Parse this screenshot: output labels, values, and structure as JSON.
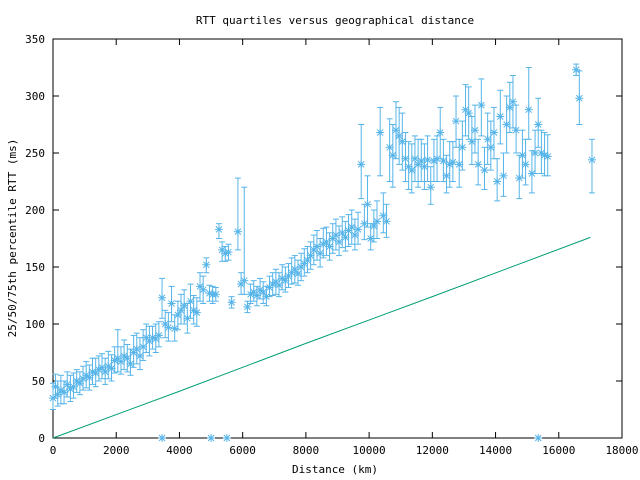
{
  "chart_data": {
    "type": "scatter",
    "title": "RTT quartiles versus geographical distance",
    "xlabel": "Distance (km)",
    "ylabel": "25/50/75th percentile RTT (ms)",
    "xlim": [
      0,
      18000
    ],
    "ylim": [
      0,
      350
    ],
    "x_ticks": [
      0,
      2000,
      4000,
      6000,
      8000,
      10000,
      12000,
      14000,
      16000,
      18000
    ],
    "y_ticks": [
      0,
      50,
      100,
      150,
      200,
      250,
      300,
      350
    ],
    "grid": false,
    "legend": "none",
    "colors": {
      "points": "#56b4e9",
      "line": "#009e73"
    },
    "series": [
      {
        "type": "errorbar",
        "values": [
          [
            0,
            35,
            25,
            48
          ],
          [
            80,
            45,
            35,
            56
          ],
          [
            150,
            38,
            28,
            50
          ],
          [
            250,
            42,
            30,
            55
          ],
          [
            350,
            40,
            30,
            50
          ],
          [
            450,
            47,
            36,
            58
          ],
          [
            550,
            43,
            32,
            55
          ],
          [
            650,
            45,
            35,
            57
          ],
          [
            750,
            50,
            40,
            60
          ],
          [
            850,
            48,
            38,
            58
          ],
          [
            950,
            52,
            42,
            63
          ],
          [
            1050,
            55,
            44,
            67
          ],
          [
            1150,
            53,
            42,
            64
          ],
          [
            1250,
            58,
            47,
            70
          ],
          [
            1350,
            57,
            45,
            70
          ],
          [
            1450,
            60,
            50,
            72
          ],
          [
            1550,
            62,
            52,
            74
          ],
          [
            1650,
            58,
            47,
            70
          ],
          [
            1750,
            63,
            52,
            76
          ],
          [
            1850,
            61,
            50,
            73
          ],
          [
            1950,
            68,
            57,
            80
          ],
          [
            2050,
            70,
            58,
            95
          ],
          [
            2150,
            67,
            56,
            80
          ],
          [
            2250,
            72,
            60,
            86
          ],
          [
            2350,
            70,
            58,
            82
          ],
          [
            2450,
            65,
            55,
            78
          ],
          [
            2550,
            75,
            62,
            90
          ],
          [
            2650,
            78,
            65,
            92
          ],
          [
            2750,
            72,
            60,
            88
          ],
          [
            2850,
            80,
            68,
            95
          ],
          [
            2950,
            88,
            75,
            100
          ],
          [
            3050,
            85,
            72,
            98
          ],
          [
            3150,
            88,
            78,
            98
          ],
          [
            3250,
            87,
            75,
            100
          ],
          [
            3350,
            90,
            80,
            102
          ],
          [
            3450,
            123,
            105,
            140
          ],
          [
            3550,
            100,
            88,
            112
          ],
          [
            3650,
            97,
            85,
            110
          ],
          [
            3750,
            118,
            102,
            133
          ],
          [
            3850,
            96,
            85,
            108
          ],
          [
            3950,
            108,
            95,
            120
          ],
          [
            4050,
            112,
            100,
            126
          ],
          [
            4150,
            116,
            100,
            130
          ],
          [
            4250,
            105,
            92,
            118
          ],
          [
            4350,
            120,
            105,
            135
          ],
          [
            4450,
            112,
            100,
            125
          ],
          [
            4550,
            110,
            98,
            123
          ],
          [
            4650,
            133,
            120,
            145
          ],
          [
            4750,
            130,
            118,
            142
          ],
          [
            4850,
            152,
            145,
            158
          ],
          [
            4950,
            127,
            120,
            134
          ],
          [
            5050,
            126,
            118,
            133
          ],
          [
            5150,
            126,
            120,
            132
          ],
          [
            5250,
            183,
            175,
            188
          ],
          [
            5350,
            165,
            155,
            172
          ],
          [
            5450,
            162,
            155,
            168
          ],
          [
            5550,
            163,
            156,
            170
          ],
          [
            5650,
            119,
            114,
            124
          ],
          [
            5850,
            181,
            165,
            228
          ],
          [
            5950,
            135,
            126,
            145
          ],
          [
            6050,
            138,
            126,
            220
          ],
          [
            6150,
            115,
            110,
            120
          ],
          [
            6250,
            126,
            118,
            135
          ],
          [
            6350,
            128,
            120,
            138
          ],
          [
            6450,
            125,
            116,
            133
          ],
          [
            6550,
            130,
            122,
            140
          ],
          [
            6650,
            128,
            118,
            137
          ],
          [
            6750,
            124,
            116,
            133
          ],
          [
            6850,
            132,
            124,
            142
          ],
          [
            6950,
            135,
            125,
            145
          ],
          [
            7050,
            137,
            126,
            148
          ],
          [
            7150,
            134,
            124,
            145
          ],
          [
            7250,
            140,
            130,
            152
          ],
          [
            7350,
            138,
            128,
            150
          ],
          [
            7450,
            142,
            132,
            153
          ],
          [
            7550,
            145,
            135,
            158
          ],
          [
            7650,
            148,
            136,
            160
          ],
          [
            7750,
            144,
            134,
            156
          ],
          [
            7850,
            150,
            138,
            162
          ],
          [
            7950,
            153,
            142,
            166
          ],
          [
            8050,
            156,
            145,
            168
          ],
          [
            8150,
            160,
            148,
            172
          ],
          [
            8250,
            165,
            152,
            178
          ],
          [
            8350,
            168,
            156,
            182
          ],
          [
            8450,
            162,
            150,
            175
          ],
          [
            8550,
            170,
            158,
            184
          ],
          [
            8650,
            172,
            160,
            185
          ],
          [
            8750,
            168,
            156,
            180
          ],
          [
            8850,
            175,
            162,
            188
          ],
          [
            8950,
            178,
            165,
            192
          ],
          [
            9050,
            172,
            160,
            186
          ],
          [
            9150,
            180,
            167,
            194
          ],
          [
            9250,
            176,
            164,
            190
          ],
          [
            9350,
            182,
            168,
            196
          ],
          [
            9450,
            185,
            170,
            200
          ],
          [
            9550,
            178,
            165,
            192
          ],
          [
            9650,
            183,
            170,
            198
          ],
          [
            9750,
            240,
            210,
            275
          ],
          [
            9850,
            188,
            174,
            205
          ],
          [
            9950,
            205,
            185,
            230
          ],
          [
            10050,
            175,
            165,
            188
          ],
          [
            10150,
            186,
            172,
            200
          ],
          [
            10250,
            190,
            175,
            208
          ],
          [
            10350,
            268,
            230,
            290
          ],
          [
            10450,
            195,
            180,
            215
          ],
          [
            10550,
            190,
            176,
            205
          ],
          [
            10650,
            255,
            225,
            280
          ],
          [
            10750,
            248,
            220,
            275
          ],
          [
            10850,
            270,
            245,
            295
          ],
          [
            10950,
            265,
            240,
            290
          ],
          [
            11050,
            260,
            235,
            285
          ],
          [
            11150,
            245,
            225,
            268
          ],
          [
            11250,
            238,
            218,
            260
          ],
          [
            11350,
            235,
            215,
            258
          ],
          [
            11450,
            245,
            225,
            265
          ],
          [
            11550,
            240,
            220,
            262
          ],
          [
            11650,
            243,
            225,
            262
          ],
          [
            11750,
            238,
            218,
            258
          ],
          [
            11850,
            244,
            225,
            265
          ],
          [
            11950,
            220,
            205,
            238
          ],
          [
            12050,
            243,
            225,
            262
          ],
          [
            12150,
            245,
            225,
            265
          ],
          [
            12250,
            268,
            245,
            290
          ],
          [
            12350,
            243,
            225,
            262
          ],
          [
            12450,
            230,
            215,
            248
          ],
          [
            12550,
            240,
            220,
            260
          ],
          [
            12650,
            242,
            225,
            260
          ],
          [
            12750,
            278,
            255,
            300
          ],
          [
            12850,
            240,
            220,
            262
          ],
          [
            12950,
            255,
            235,
            278
          ],
          [
            13050,
            288,
            265,
            310
          ],
          [
            13150,
            285,
            262,
            308
          ],
          [
            13250,
            260,
            240,
            282
          ],
          [
            13350,
            270,
            250,
            292
          ],
          [
            13450,
            240,
            222,
            262
          ],
          [
            13550,
            292,
            265,
            315
          ],
          [
            13650,
            235,
            218,
            255
          ],
          [
            13750,
            262,
            240,
            285
          ],
          [
            13850,
            255,
            235,
            278
          ],
          [
            13950,
            268,
            245,
            290
          ],
          [
            14050,
            225,
            208,
            245
          ],
          [
            14150,
            282,
            258,
            305
          ],
          [
            14250,
            230,
            212,
            250
          ],
          [
            14350,
            275,
            250,
            300
          ],
          [
            14450,
            290,
            268,
            312
          ],
          [
            14550,
            295,
            272,
            318
          ],
          [
            14650,
            270,
            250,
            292
          ],
          [
            14750,
            228,
            210,
            248
          ],
          [
            14850,
            248,
            228,
            270
          ],
          [
            14950,
            240,
            222,
            262
          ],
          [
            15050,
            288,
            262,
            325
          ],
          [
            15150,
            232,
            215,
            252
          ],
          [
            15250,
            250,
            232,
            270
          ],
          [
            15350,
            275,
            255,
            298
          ],
          [
            15450,
            250,
            232,
            270
          ],
          [
            15550,
            248,
            230,
            268
          ],
          [
            15650,
            247,
            230,
            266
          ],
          [
            16550,
            323,
            318,
            328
          ],
          [
            16650,
            298,
            275,
            322
          ],
          [
            17050,
            244,
            215,
            262
          ]
        ]
      },
      {
        "type": "points",
        "values": [
          [
            3450,
            0
          ],
          [
            5000,
            0
          ],
          [
            5500,
            0
          ],
          [
            15350,
            0
          ]
        ]
      },
      {
        "type": "line",
        "x": [
          0,
          4000,
          8000,
          12000,
          17000
        ],
        "y": [
          0,
          41,
          83,
          124,
          176
        ]
      }
    ]
  }
}
